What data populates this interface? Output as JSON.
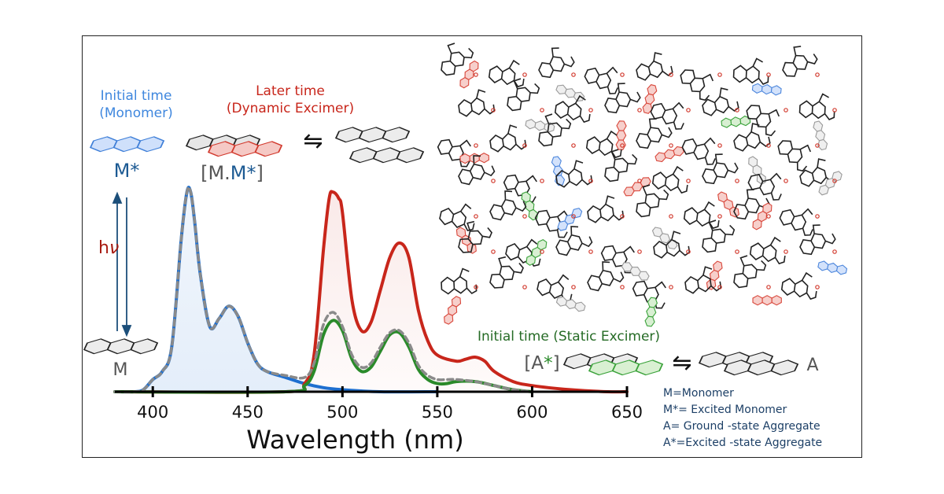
{
  "labels": {
    "initial_time_monomer": [
      "Initial time",
      "(Monomer)"
    ],
    "later_time_dynamic": [
      "Later time",
      "(Dynamic Excimer)"
    ],
    "initial_time_static": "Initial time (Static Excimer)",
    "m_star": "M*",
    "mm_star_prefix": "[M.",
    "mm_star_mid": "M*",
    "mm_star_suffix": "]",
    "a_star_prefix": "[A",
    "a_star_mid": "*",
    "a_star_suffix": "]",
    "m": "M",
    "a": "A",
    "hv_h": "h",
    "hv_v": "ν",
    "equilibrium": "⇋"
  },
  "legend_lines": [
    "M=Monomer",
    "M*= Excited Monomer",
    "A= Ground -state Aggregate",
    "A*=Excited -state Aggregate"
  ],
  "colors": {
    "monomer_blue": "#1e6fd0",
    "dynamic_red": "#c8261b",
    "static_green": "#2a8a2a",
    "dashed_gray": "#8a8a8a",
    "label_gray": "#555555",
    "navy": "#1c3f66"
  },
  "chart_data": {
    "type": "line",
    "xlabel": "Wavelength (nm)",
    "xlim": [
      380,
      650
    ],
    "xticks": [
      400,
      450,
      500,
      550,
      600,
      650
    ],
    "y_axis_visible": false,
    "series": [
      {
        "color": "#1e6fd0",
        "fill": true,
        "x": [
          380,
          390,
          395,
          400,
          405,
          410,
          415,
          418,
          420,
          422,
          425,
          430,
          435,
          440,
          445,
          450,
          455,
          460,
          470,
          480,
          490,
          500,
          520,
          550
        ],
        "y": [
          0,
          0,
          1,
          6,
          10,
          22,
          75,
          98,
          98,
          84,
          58,
          32,
          36,
          42,
          37,
          24,
          14,
          10,
          7,
          4,
          2,
          1,
          0,
          0
        ]
      },
      {
        "color": "#c8261b",
        "fill": true,
        "x": [
          380,
          470,
          480,
          485,
          490,
          493,
          495,
          498,
          500,
          505,
          510,
          515,
          520,
          525,
          530,
          535,
          540,
          545,
          550,
          560,
          565,
          570,
          575,
          580,
          590,
          600,
          620,
          640,
          650
        ],
        "y": [
          0,
          0,
          4,
          18,
          70,
          95,
          98,
          95,
          88,
          45,
          30,
          34,
          50,
          66,
          73,
          66,
          40,
          25,
          18,
          15,
          16,
          17,
          15,
          10,
          5,
          3,
          1,
          0,
          0
        ]
      },
      {
        "color": "#2a8a2a",
        "fill": false,
        "x": [
          380,
          470,
          480,
          485,
          490,
          495,
          500,
          505,
          510,
          515,
          520,
          525,
          530,
          535,
          540,
          545,
          550,
          555,
          560,
          570,
          580,
          590,
          600
        ],
        "y": [
          0,
          0,
          3,
          10,
          28,
          35,
          30,
          16,
          10,
          12,
          20,
          28,
          29,
          22,
          11,
          6,
          4,
          4,
          5,
          5,
          3,
          1,
          0
        ]
      },
      {
        "color": "#8a8a8a",
        "dashed": true,
        "x": [
          380,
          390,
          395,
          400,
          405,
          410,
          415,
          418,
          420,
          422,
          425,
          430,
          435,
          440,
          445,
          450,
          455,
          460,
          470,
          480,
          485,
          490,
          495,
          500,
          505,
          510,
          515,
          520,
          525,
          530,
          535,
          540,
          545,
          550,
          555,
          560,
          570,
          580,
          590,
          600
        ],
        "y": [
          0,
          0,
          1,
          6,
          10,
          22,
          75,
          98,
          98,
          84,
          58,
          32,
          36,
          42,
          37,
          24,
          14,
          10,
          8,
          7,
          14,
          33,
          39,
          32,
          18,
          12,
          14,
          22,
          29,
          30,
          24,
          13,
          8,
          6,
          6,
          6,
          5,
          3,
          1,
          0
        ]
      }
    ]
  }
}
